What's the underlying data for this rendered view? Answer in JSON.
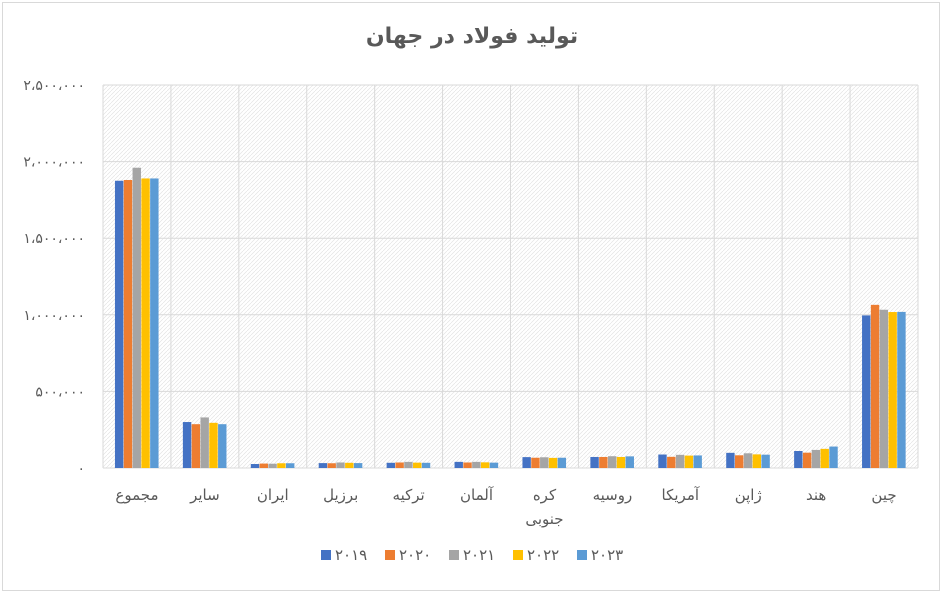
{
  "chart_data": {
    "type": "bar",
    "title": "تولید فولاد در جهان",
    "xlabel": "",
    "ylabel": "",
    "ylim": [
      0,
      2500000
    ],
    "yticks": [
      0,
      500000,
      1000000,
      1500000,
      2000000,
      2500000
    ],
    "ytick_labels": [
      "۰",
      "۵۰۰،۰۰۰",
      "۱،۰۰۰،۰۰۰",
      "۱،۵۰۰،۰۰۰",
      "۲،۰۰۰،۰۰۰",
      "۲،۵۰۰،۰۰۰"
    ],
    "grid": true,
    "legend_position": "bottom",
    "categories": [
      "چین",
      "هند",
      "ژاپن",
      "آمریکا",
      "روسیه",
      "کره جنوبی",
      "آلمان",
      "ترکیه",
      "برزیل",
      "ایران",
      "سایر",
      "مجموع"
    ],
    "series": [
      {
        "name": "۲۰۱۹",
        "color": "#4472C4",
        "values": [
          996000,
          111000,
          99000,
          88000,
          72000,
          71000,
          40000,
          34000,
          32000,
          26000,
          300000,
          1875000
        ]
      },
      {
        "name": "۲۰۲۰",
        "color": "#ED7D31",
        "values": [
          1065000,
          100000,
          83000,
          73000,
          72000,
          67000,
          36000,
          36000,
          31000,
          29000,
          286000,
          1880000
        ]
      },
      {
        "name": "۲۰۲۱",
        "color": "#A5A5A5",
        "values": [
          1033000,
          118000,
          96000,
          86000,
          77000,
          70000,
          40000,
          40000,
          36000,
          28000,
          330000,
          1960000
        ]
      },
      {
        "name": "۲۰۲۲",
        "color": "#FFC000",
        "values": [
          1018000,
          125000,
          89000,
          81000,
          72000,
          66000,
          37000,
          35000,
          34000,
          31000,
          295000,
          1890000
        ]
      },
      {
        "name": "۲۰۲۳",
        "color": "#5B9BD5",
        "values": [
          1019000,
          140000,
          87000,
          82000,
          76000,
          67000,
          35000,
          34000,
          32000,
          31000,
          286000,
          1890000
        ]
      }
    ]
  }
}
